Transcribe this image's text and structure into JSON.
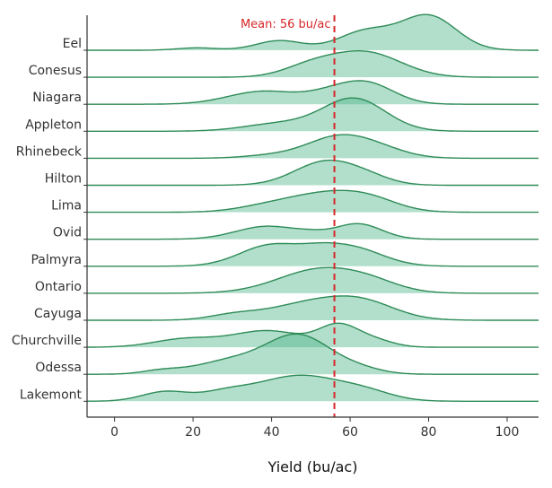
{
  "chart_data": {
    "type": "ridgeline",
    "xlabel": "Yield (bu/ac)",
    "xlim": [
      -7,
      108
    ],
    "x_ticks": [
      0,
      20,
      40,
      60,
      80,
      100
    ],
    "x_tick_labels": [
      "0",
      "20",
      "40",
      "60",
      "80",
      "100"
    ],
    "mean": 56,
    "mean_label": "Mean: 56 bu/ac",
    "series": [
      {
        "name": "Eel",
        "components": [
          {
            "mu": 80,
            "sd": 7,
            "w": 1.0
          },
          {
            "mu": 64,
            "sd": 7,
            "w": 0.55
          },
          {
            "mu": 42,
            "sd": 6,
            "w": 0.28
          },
          {
            "mu": 21,
            "sd": 5,
            "w": 0.07
          }
        ]
      },
      {
        "name": "Conesus",
        "components": [
          {
            "mu": 64,
            "sd": 9,
            "w": 0.72
          },
          {
            "mu": 50,
            "sd": 7,
            "w": 0.3
          }
        ]
      },
      {
        "name": "Niagara",
        "components": [
          {
            "mu": 64,
            "sd": 7,
            "w": 0.62
          },
          {
            "mu": 38,
            "sd": 9,
            "w": 0.38
          },
          {
            "mu": 54,
            "sd": 6,
            "w": 0.2
          }
        ]
      },
      {
        "name": "Appleton",
        "components": [
          {
            "mu": 61,
            "sd": 8,
            "w": 0.95
          },
          {
            "mu": 42,
            "sd": 9,
            "w": 0.22
          }
        ]
      },
      {
        "name": "Rhinebeck",
        "components": [
          {
            "mu": 57,
            "sd": 8,
            "w": 0.62
          },
          {
            "mu": 68,
            "sd": 7,
            "w": 0.2
          },
          {
            "mu": 40,
            "sd": 7,
            "w": 0.08
          }
        ]
      },
      {
        "name": "Hilton",
        "components": [
          {
            "mu": 54,
            "sd": 8,
            "w": 0.7
          },
          {
            "mu": 65,
            "sd": 6,
            "w": 0.15
          }
        ]
      },
      {
        "name": "Lima",
        "components": [
          {
            "mu": 55,
            "sd": 10,
            "w": 0.55
          },
          {
            "mu": 39,
            "sd": 8,
            "w": 0.15
          },
          {
            "mu": 66,
            "sd": 7,
            "w": 0.2
          }
        ]
      },
      {
        "name": "Ovid",
        "components": [
          {
            "mu": 39,
            "sd": 8,
            "w": 0.38
          },
          {
            "mu": 62,
            "sd": 6,
            "w": 0.45
          },
          {
            "mu": 50,
            "sd": 4,
            "w": 0.08
          }
        ]
      },
      {
        "name": "Palmyra",
        "components": [
          {
            "mu": 40,
            "sd": 8,
            "w": 0.62
          },
          {
            "mu": 60,
            "sd": 8,
            "w": 0.55
          },
          {
            "mu": 52,
            "sd": 5,
            "w": 0.15
          }
        ]
      },
      {
        "name": "Ontario",
        "components": [
          {
            "mu": 53,
            "sd": 11,
            "w": 0.72
          },
          {
            "mu": 66,
            "sd": 7,
            "w": 0.15
          }
        ]
      },
      {
        "name": "Cayuga",
        "components": [
          {
            "mu": 52,
            "sd": 12,
            "w": 0.55
          },
          {
            "mu": 64,
            "sd": 8,
            "w": 0.3
          },
          {
            "mu": 30,
            "sd": 6,
            "w": 0.12
          }
        ]
      },
      {
        "name": "Churchville",
        "components": [
          {
            "mu": 57,
            "sd": 5,
            "w": 0.6
          },
          {
            "mu": 39,
            "sd": 9,
            "w": 0.48
          },
          {
            "mu": 18,
            "sd": 8,
            "w": 0.24
          },
          {
            "mu": 66,
            "sd": 5,
            "w": 0.2
          }
        ]
      },
      {
        "name": "Odessa",
        "components": [
          {
            "mu": 47,
            "sd": 8,
            "w": 1.1
          },
          {
            "mu": 30,
            "sd": 9,
            "w": 0.4
          },
          {
            "mu": 12,
            "sd": 5,
            "w": 0.1
          },
          {
            "mu": 62,
            "sd": 6,
            "w": 0.15
          }
        ]
      },
      {
        "name": "Lakemont",
        "components": [
          {
            "mu": 47,
            "sd": 11,
            "w": 0.75
          },
          {
            "mu": 13,
            "sd": 6,
            "w": 0.28
          },
          {
            "mu": 28,
            "sd": 6,
            "w": 0.2
          },
          {
            "mu": 64,
            "sd": 7,
            "w": 0.2
          }
        ]
      }
    ],
    "colors": {
      "fill": "#3fb07f",
      "line": "#2e8b57",
      "mean_line": "#d62728",
      "axis": "#333333"
    }
  }
}
